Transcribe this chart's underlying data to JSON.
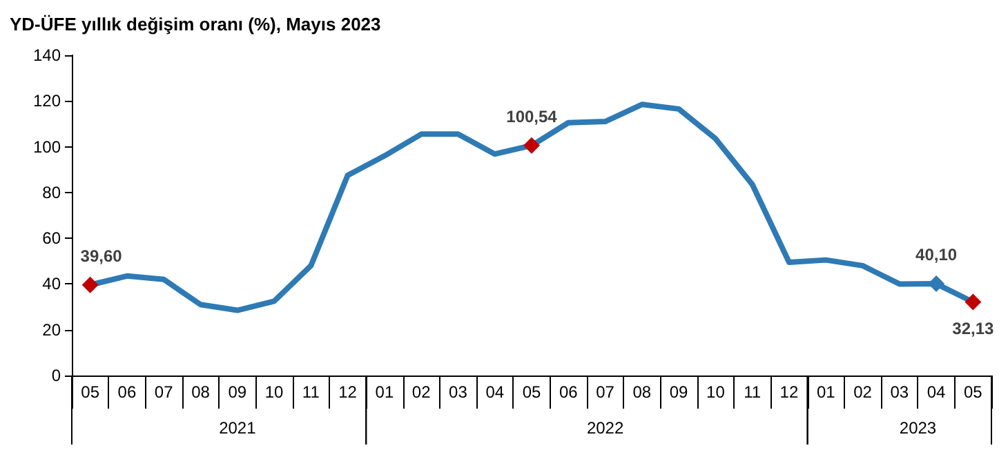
{
  "chart_data": {
    "type": "line",
    "title": "YD-ÜFE yıllık değişim oranı (%), Mayıs 2023",
    "categories": [
      "05",
      "06",
      "07",
      "08",
      "09",
      "10",
      "11",
      "12",
      "01",
      "02",
      "03",
      "04",
      "05",
      "06",
      "07",
      "08",
      "09",
      "10",
      "11",
      "12",
      "01",
      "02",
      "03",
      "04",
      "05"
    ],
    "series": [
      {
        "color": "#2e7ab5",
        "values": [
          39.6,
          43.5,
          42,
          31,
          28.5,
          32.5,
          48,
          87.5,
          96,
          105.5,
          105.5,
          96.8,
          100.54,
          110.5,
          111,
          118.5,
          116.5,
          103.5,
          83.5,
          49.5,
          50.5,
          48,
          40,
          40.1,
          32.13
        ],
        "colors": [
          "#c00000",
          "#2e7ab5",
          "#2e7ab5",
          "#2e7ab5",
          "#2e7ab5",
          "#2e7ab5",
          "#2e7ab5",
          "#2e7ab5",
          "#2e7ab5",
          "#2e7ab5",
          "#2e7ab5",
          "#2e7ab5",
          "#c00000",
          "#2e7ab5",
          "#2e7ab5",
          "#2e7ab5",
          "#2e7ab5",
          "#2e7ab5",
          "#2e7ab5",
          "#2e7ab5",
          "#2e7ab5",
          "#2e7ab5",
          "#2e7ab5",
          "#2e7ab5",
          "#c00000"
        ],
        "value_labels": [
          "39,60",
          null,
          null,
          null,
          null,
          null,
          null,
          null,
          null,
          null,
          null,
          null,
          "100,54",
          null,
          null,
          null,
          null,
          null,
          null,
          null,
          null,
          null,
          null,
          "40,10",
          "32,13"
        ]
      }
    ],
    "annotations": [
      "2021",
      "2022",
      "2023"
    ],
    "ylim": [
      0,
      140
    ],
    "yticks": [
      0,
      20,
      40,
      60,
      80,
      100,
      120,
      140
    ],
    "grid": false,
    "line_style": "solid"
  }
}
